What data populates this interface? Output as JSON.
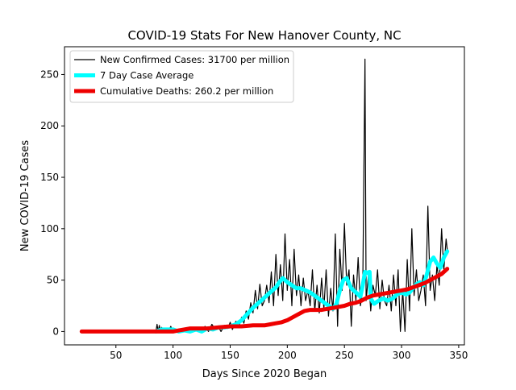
{
  "chart_data": {
    "type": "line",
    "title": "COVID-19 Stats For New Hanover County, NC",
    "xlabel": "Days Since 2020 Began",
    "ylabel": "New COVID-19 Cases",
    "xlim": [
      5,
      355
    ],
    "ylim": [
      -13,
      277
    ],
    "xticks": [
      50,
      100,
      150,
      200,
      250,
      300,
      350
    ],
    "yticks": [
      0,
      50,
      100,
      150,
      200,
      250
    ],
    "grid": false,
    "legend_position": "top-left",
    "series": [
      {
        "name": "New Confirmed Cases: 31700 per million",
        "color": "#000000",
        "points": [
          [
            20,
            0
          ],
          [
            40,
            0
          ],
          [
            60,
            0
          ],
          [
            80,
            0
          ],
          [
            85,
            0
          ],
          [
            86,
            7
          ],
          [
            87,
            0
          ],
          [
            88,
            6
          ],
          [
            89,
            0
          ],
          [
            90,
            4
          ],
          [
            92,
            0
          ],
          [
            94,
            3
          ],
          [
            96,
            0
          ],
          [
            98,
            5
          ],
          [
            100,
            0
          ],
          [
            102,
            2
          ],
          [
            105,
            0
          ],
          [
            108,
            1
          ],
          [
            110,
            3
          ],
          [
            113,
            0
          ],
          [
            116,
            4
          ],
          [
            119,
            0
          ],
          [
            122,
            2
          ],
          [
            125,
            0
          ],
          [
            128,
            5
          ],
          [
            131,
            0
          ],
          [
            134,
            7
          ],
          [
            137,
            2
          ],
          [
            140,
            4
          ],
          [
            142,
            0
          ],
          [
            145,
            6
          ],
          [
            148,
            3
          ],
          [
            150,
            9
          ],
          [
            152,
            2
          ],
          [
            155,
            10
          ],
          [
            158,
            6
          ],
          [
            160,
            14
          ],
          [
            162,
            8
          ],
          [
            164,
            20
          ],
          [
            166,
            12
          ],
          [
            168,
            28
          ],
          [
            170,
            18
          ],
          [
            172,
            40
          ],
          [
            174,
            22
          ],
          [
            176,
            46
          ],
          [
            178,
            25
          ],
          [
            180,
            30
          ],
          [
            182,
            45
          ],
          [
            184,
            28
          ],
          [
            186,
            58
          ],
          [
            188,
            25
          ],
          [
            190,
            75
          ],
          [
            192,
            35
          ],
          [
            194,
            65
          ],
          [
            196,
            30
          ],
          [
            198,
            95
          ],
          [
            200,
            40
          ],
          [
            202,
            70
          ],
          [
            204,
            25
          ],
          [
            206,
            80
          ],
          [
            208,
            35
          ],
          [
            210,
            55
          ],
          [
            212,
            25
          ],
          [
            214,
            52
          ],
          [
            216,
            30
          ],
          [
            218,
            40
          ],
          [
            220,
            25
          ],
          [
            222,
            60
          ],
          [
            224,
            20
          ],
          [
            226,
            45
          ],
          [
            228,
            18
          ],
          [
            230,
            52
          ],
          [
            232,
            22
          ],
          [
            234,
            60
          ],
          [
            236,
            15
          ],
          [
            238,
            42
          ],
          [
            240,
            20
          ],
          [
            242,
            95
          ],
          [
            244,
            5
          ],
          [
            246,
            80
          ],
          [
            248,
            40
          ],
          [
            250,
            105
          ],
          [
            252,
            45
          ],
          [
            254,
            60
          ],
          [
            256,
            5
          ],
          [
            258,
            55
          ],
          [
            260,
            30
          ],
          [
            262,
            72
          ],
          [
            264,
            25
          ],
          [
            266,
            40
          ],
          [
            268,
            265
          ],
          [
            269,
            30
          ],
          [
            271,
            55
          ],
          [
            273,
            20
          ],
          [
            275,
            45
          ],
          [
            277,
            35
          ],
          [
            279,
            60
          ],
          [
            281,
            22
          ],
          [
            283,
            50
          ],
          [
            285,
            30
          ],
          [
            287,
            25
          ],
          [
            289,
            45
          ],
          [
            291,
            20
          ],
          [
            293,
            55
          ],
          [
            295,
            25
          ],
          [
            297,
            60
          ],
          [
            299,
            0
          ],
          [
            301,
            40
          ],
          [
            303,
            0
          ],
          [
            305,
            70
          ],
          [
            307,
            20
          ],
          [
            309,
            100
          ],
          [
            311,
            35
          ],
          [
            313,
            60
          ],
          [
            315,
            30
          ],
          [
            317,
            40
          ],
          [
            319,
            55
          ],
          [
            321,
            25
          ],
          [
            323,
            122
          ],
          [
            325,
            40
          ],
          [
            327,
            55
          ],
          [
            329,
            30
          ],
          [
            331,
            65
          ],
          [
            333,
            45
          ],
          [
            335,
            100
          ],
          [
            337,
            60
          ],
          [
            339,
            90
          ],
          [
            340,
            80
          ]
        ]
      },
      {
        "name": "7 Day Case Average",
        "color": "#00ffff",
        "points": [
          [
            85,
            0
          ],
          [
            90,
            2
          ],
          [
            100,
            2
          ],
          [
            105,
            0
          ],
          [
            110,
            1
          ],
          [
            115,
            0
          ],
          [
            120,
            2
          ],
          [
            125,
            0
          ],
          [
            130,
            3
          ],
          [
            135,
            2
          ],
          [
            140,
            4
          ],
          [
            145,
            4
          ],
          [
            150,
            5
          ],
          [
            155,
            7
          ],
          [
            160,
            11
          ],
          [
            165,
            17
          ],
          [
            170,
            23
          ],
          [
            175,
            28
          ],
          [
            180,
            33
          ],
          [
            185,
            38
          ],
          [
            190,
            43
          ],
          [
            193,
            48
          ],
          [
            196,
            52
          ],
          [
            200,
            48
          ],
          [
            204,
            45
          ],
          [
            208,
            42
          ],
          [
            212,
            42
          ],
          [
            216,
            40
          ],
          [
            220,
            38
          ],
          [
            225,
            34
          ],
          [
            230,
            30
          ],
          [
            235,
            26
          ],
          [
            240,
            22
          ],
          [
            243,
            27
          ],
          [
            246,
            40
          ],
          [
            249,
            50
          ],
          [
            252,
            52
          ],
          [
            256,
            42
          ],
          [
            260,
            38
          ],
          [
            264,
            34
          ],
          [
            266,
            45
          ],
          [
            268,
            58
          ],
          [
            270,
            57
          ],
          [
            272,
            58
          ],
          [
            273,
            32
          ],
          [
            276,
            27
          ],
          [
            280,
            30
          ],
          [
            284,
            32
          ],
          [
            288,
            30
          ],
          [
            292,
            32
          ],
          [
            296,
            36
          ],
          [
            300,
            38
          ],
          [
            304,
            36
          ],
          [
            307,
            38
          ],
          [
            310,
            42
          ],
          [
            313,
            46
          ],
          [
            316,
            48
          ],
          [
            319,
            45
          ],
          [
            322,
            55
          ],
          [
            325,
            68
          ],
          [
            328,
            72
          ],
          [
            331,
            66
          ],
          [
            334,
            62
          ],
          [
            337,
            72
          ],
          [
            340,
            78
          ]
        ]
      },
      {
        "name": "Cumulative Deaths: 260.2 per million",
        "color": "#ee0000",
        "points": [
          [
            20,
            0
          ],
          [
            100,
            0
          ],
          [
            105,
            1
          ],
          [
            110,
            2
          ],
          [
            115,
            3
          ],
          [
            120,
            3
          ],
          [
            130,
            3
          ],
          [
            140,
            4
          ],
          [
            150,
            5
          ],
          [
            160,
            5
          ],
          [
            170,
            6
          ],
          [
            180,
            6
          ],
          [
            185,
            7
          ],
          [
            190,
            8
          ],
          [
            195,
            9
          ],
          [
            200,
            11
          ],
          [
            205,
            14
          ],
          [
            210,
            17
          ],
          [
            215,
            20
          ],
          [
            220,
            21
          ],
          [
            225,
            21
          ],
          [
            230,
            21
          ],
          [
            235,
            22
          ],
          [
            240,
            23
          ],
          [
            245,
            24
          ],
          [
            250,
            25
          ],
          [
            255,
            27
          ],
          [
            260,
            28
          ],
          [
            265,
            30
          ],
          [
            270,
            33
          ],
          [
            275,
            35
          ],
          [
            280,
            36
          ],
          [
            285,
            37
          ],
          [
            290,
            38
          ],
          [
            295,
            39
          ],
          [
            300,
            40
          ],
          [
            305,
            41
          ],
          [
            310,
            43
          ],
          [
            315,
            45
          ],
          [
            320,
            47
          ],
          [
            325,
            50
          ],
          [
            330,
            53
          ],
          [
            335,
            56
          ],
          [
            340,
            61
          ]
        ]
      }
    ]
  }
}
